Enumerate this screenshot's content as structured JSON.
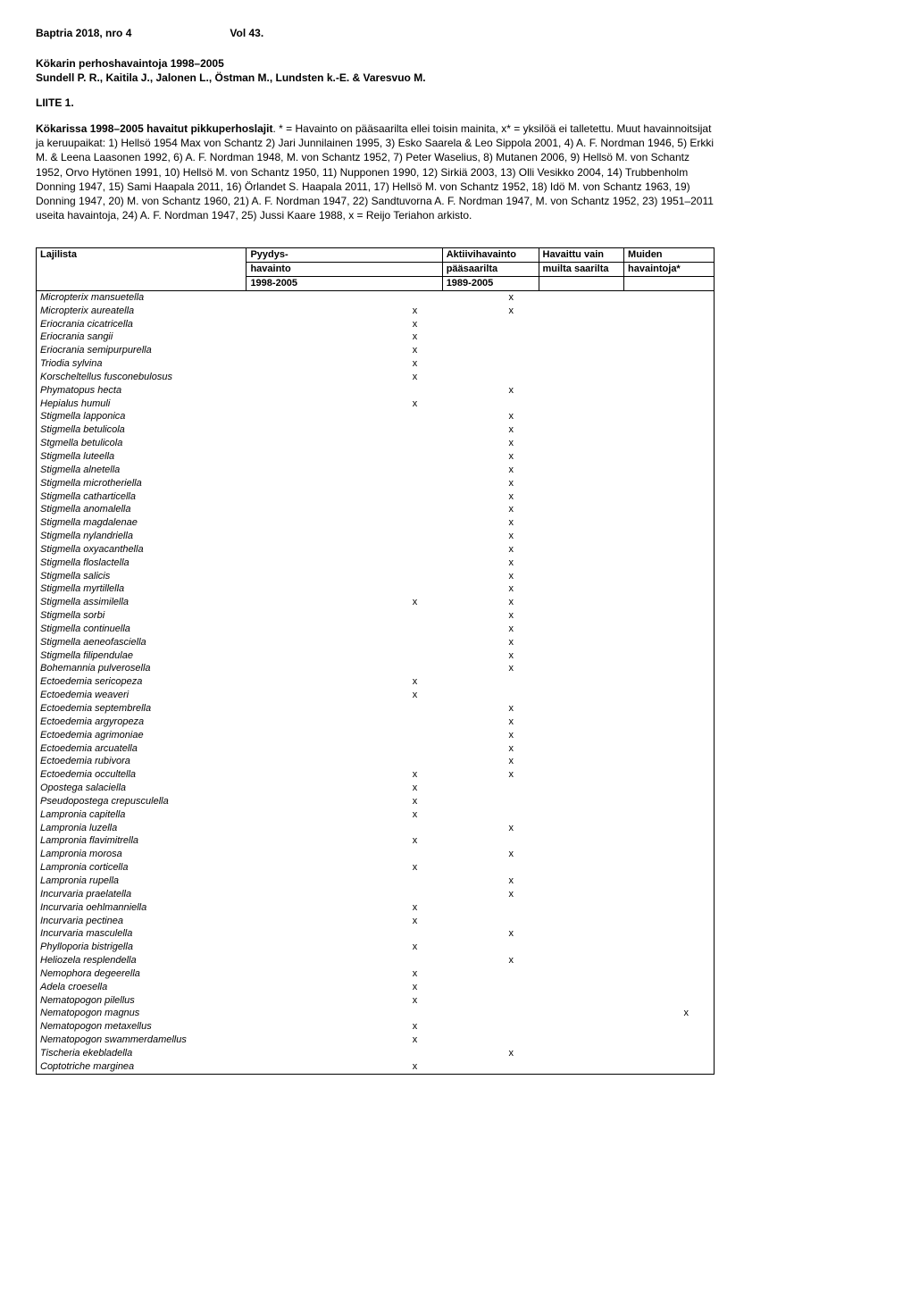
{
  "header": {
    "journal": "Baptria 2018, nro 4",
    "vol": "Vol 43."
  },
  "subtitle": {
    "line1": "Kökarin perhoshavaintoja 1998–2005",
    "line2": "Sundell P. R., Kaitila J., Jalonen L., Östman M., Lundsten k.-E. & Varesvuo M."
  },
  "liite": "LIITE 1.",
  "intro_bold": "Kökarissa 1998–2005 havaitut pikkuperhoslajit",
  "intro_rest": ". * = Havainto on pääsaarilta ellei toisin mainita, x* = yksilöä ei talletettu. Muut havainnoitsijat ja keruupaikat: 1) Hellsö 1954 Max von Schantz 2) Jari Junnilainen 1995, 3) Esko Saarela & Leo Sippola 2001, 4) A. F. Nordman 1946, 5) Erkki M. & Leena Laasonen 1992, 6) A. F. Nordman 1948, M. von Schantz 1952, 7) Peter Waselius, 8) Mutanen 2006, 9) Hellsö M. von Schantz 1952, Orvo Hytönen 1991, 10) Hellsö M. von Schantz 1950, 11) Nupponen 1990, 12) Sirkiä 2003, 13) Olli Vesikko 2004, 14) Trubbenholm Donning 1947, 15) Sami Haapala 2011, 16) Örlandet S. Haapala 2011, 17) Hellsö M. von Schantz 1952, 18) Idö M. von Schantz 1963, 19) Donning 1947, 20) M. von Schantz 1960, 21) A. F. Nordman 1947, 22) Sandtuvorna A. F. Nordman 1947, M. von Schantz 1952, 23) 1951–2011 useita havaintoja, 24) A. F. Nordman 1947, 25) Jussi Kaare 1988, x = Reijo Teriahon arkisto.",
  "table": {
    "headers": {
      "c0": "Lajilista",
      "c1a": "Pyydys-",
      "c1b": "havainto",
      "c1c": "1998-2005",
      "c2a": "Aktiivihavainto",
      "c2b": "pääsaarilta",
      "c2c": "1989-2005",
      "c3a": "Havaittu vain",
      "c3b": "muilta saarilta",
      "c4a": "Muiden",
      "c4b": "havaintoja*"
    },
    "rows": [
      {
        "name": "Micropterix mansuetella",
        "c1": "",
        "c2": "x",
        "c3": "",
        "c4": ""
      },
      {
        "name": "Micropterix aureatella",
        "c1": "x",
        "c2": "x",
        "c3": "",
        "c4": ""
      },
      {
        "name": "Eriocrania cicatricella",
        "c1": "x",
        "c2": "",
        "c3": "",
        "c4": ""
      },
      {
        "name": "Eriocrania sangii",
        "c1": "x",
        "c2": "",
        "c3": "",
        "c4": ""
      },
      {
        "name": "Eriocrania semipurpurella",
        "c1": "x",
        "c2": "",
        "c3": "",
        "c4": ""
      },
      {
        "name": "Triodia sylvina",
        "c1": "x",
        "c2": "",
        "c3": "",
        "c4": ""
      },
      {
        "name": "Korscheltellus fusconebulosus",
        "c1": "x",
        "c2": "",
        "c3": "",
        "c4": ""
      },
      {
        "name": "Phymatopus hecta",
        "c1": "",
        "c2": "x",
        "c3": "",
        "c4": ""
      },
      {
        "name": "Hepialus humuli",
        "c1": "x",
        "c2": "",
        "c3": "",
        "c4": ""
      },
      {
        "name": "Stigmella lapponica",
        "c1": "",
        "c2": "x",
        "c3": "",
        "c4": ""
      },
      {
        "name": "Stigmella betulicola",
        "c1": "",
        "c2": "x",
        "c3": "",
        "c4": ""
      },
      {
        "name": "Stgmella betulicola",
        "c1": "",
        "c2": "x",
        "c3": "",
        "c4": ""
      },
      {
        "name": "Stigmella luteella",
        "c1": "",
        "c2": "x",
        "c3": "",
        "c4": ""
      },
      {
        "name": "Stigmella alnetella",
        "c1": "",
        "c2": "x",
        "c3": "",
        "c4": ""
      },
      {
        "name": "Stigmella microtheriella",
        "c1": "",
        "c2": "x",
        "c3": "",
        "c4": ""
      },
      {
        "name": "Stigmella catharticella",
        "c1": "",
        "c2": "x",
        "c3": "",
        "c4": ""
      },
      {
        "name": "Stigmella anomalella",
        "c1": "",
        "c2": "x",
        "c3": "",
        "c4": ""
      },
      {
        "name": "Stigmella magdalenae",
        "c1": "",
        "c2": "x",
        "c3": "",
        "c4": ""
      },
      {
        "name": "Stigmella nylandriella",
        "c1": "",
        "c2": "x",
        "c3": "",
        "c4": ""
      },
      {
        "name": "Stigmella oxyacanthella",
        "c1": "",
        "c2": "x",
        "c3": "",
        "c4": ""
      },
      {
        "name": "Stigmella floslactella",
        "c1": "",
        "c2": "x",
        "c3": "",
        "c4": ""
      },
      {
        "name": "Stigmella salicis",
        "c1": "",
        "c2": "x",
        "c3": "",
        "c4": ""
      },
      {
        "name": "Stigmella myrtillella",
        "c1": "",
        "c2": "x",
        "c3": "",
        "c4": ""
      },
      {
        "name": "Stigmella assimilella",
        "c1": "x",
        "c2": "x",
        "c3": "",
        "c4": ""
      },
      {
        "name": "Stigmella sorbi",
        "c1": "",
        "c2": "x",
        "c3": "",
        "c4": ""
      },
      {
        "name": "Stigmella continuella",
        "c1": "",
        "c2": "x",
        "c3": "",
        "c4": ""
      },
      {
        "name": "Stigmella aeneofasciella",
        "c1": "",
        "c2": "x",
        "c3": "",
        "c4": ""
      },
      {
        "name": "Stigmella filipendulae",
        "c1": "",
        "c2": "x",
        "c3": "",
        "c4": ""
      },
      {
        "name": "Bohemannia pulverosella",
        "c1": "",
        "c2": "x",
        "c3": "",
        "c4": ""
      },
      {
        "name": "Ectoedemia sericopeza",
        "c1": "x",
        "c2": "",
        "c3": "",
        "c4": ""
      },
      {
        "name": "Ectoedemia weaveri",
        "c1": "x",
        "c2": "",
        "c3": "",
        "c4": ""
      },
      {
        "name": "Ectoedemia septembrella",
        "c1": "",
        "c2": "x",
        "c3": "",
        "c4": ""
      },
      {
        "name": "Ectoedemia argyropeza",
        "c1": "",
        "c2": "x",
        "c3": "",
        "c4": ""
      },
      {
        "name": "Ectoedemia agrimoniae",
        "c1": "",
        "c2": "x",
        "c3": "",
        "c4": ""
      },
      {
        "name": "Ectoedemia arcuatella",
        "c1": "",
        "c2": "x",
        "c3": "",
        "c4": ""
      },
      {
        "name": "Ectoedemia rubivora",
        "c1": "",
        "c2": "x",
        "c3": "",
        "c4": ""
      },
      {
        "name": "Ectoedemia occultella",
        "c1": "x",
        "c2": "x",
        "c3": "",
        "c4": ""
      },
      {
        "name": "Opostega salaciella",
        "c1": "x",
        "c2": "",
        "c3": "",
        "c4": ""
      },
      {
        "name": "Pseudopostega crepusculella",
        "c1": "x",
        "c2": "",
        "c3": "",
        "c4": ""
      },
      {
        "name": "Lampronia capitella",
        "c1": "x",
        "c2": "",
        "c3": "",
        "c4": ""
      },
      {
        "name": "Lampronia luzella",
        "c1": "",
        "c2": "x",
        "c3": "",
        "c4": ""
      },
      {
        "name": "Lampronia flavimitrella",
        "c1": "x",
        "c2": "",
        "c3": "",
        "c4": ""
      },
      {
        "name": "Lampronia morosa",
        "c1": "",
        "c2": "x",
        "c3": "",
        "c4": ""
      },
      {
        "name": "Lampronia corticella",
        "c1": "x",
        "c2": "",
        "c3": "",
        "c4": ""
      },
      {
        "name": "Lampronia rupella",
        "c1": "",
        "c2": "x",
        "c3": "",
        "c4": ""
      },
      {
        "name": "Incurvaria praelatella",
        "c1": "",
        "c2": "x",
        "c3": "",
        "c4": ""
      },
      {
        "name": "Incurvaria oehlmanniella",
        "c1": "x",
        "c2": "",
        "c3": "",
        "c4": ""
      },
      {
        "name": "Incurvaria pectinea",
        "c1": "x",
        "c2": "",
        "c3": "",
        "c4": ""
      },
      {
        "name": "Incurvaria masculella",
        "c1": "",
        "c2": "x",
        "c3": "",
        "c4": ""
      },
      {
        "name": "Phylloporia bistrigella",
        "c1": "x",
        "c2": "",
        "c3": "",
        "c4": ""
      },
      {
        "name": "Heliozela resplendella",
        "c1": "",
        "c2": "x",
        "c3": "",
        "c4": ""
      },
      {
        "name": "Nemophora degeerella",
        "c1": "x",
        "c2": "",
        "c3": "",
        "c4": ""
      },
      {
        "name": "Adela croesella",
        "c1": "x",
        "c2": "",
        "c3": "",
        "c4": ""
      },
      {
        "name": "Nematopogon pilellus",
        "c1": "x",
        "c2": "",
        "c3": "",
        "c4": ""
      },
      {
        "name": "Nematopogon magnus",
        "c1": "",
        "c2": "",
        "c3": "",
        "c4": "x"
      },
      {
        "name": "Nematopogon metaxellus",
        "c1": "x",
        "c2": "",
        "c3": "",
        "c4": ""
      },
      {
        "name": "Nematopogon swammerdamellus",
        "c1": "x",
        "c2": "",
        "c3": "",
        "c4": ""
      },
      {
        "name": "Tischeria ekebladella",
        "c1": "",
        "c2": "x",
        "c3": "",
        "c4": ""
      },
      {
        "name": "Coptotriche marginea",
        "c1": "x",
        "c2": "",
        "c3": "",
        "c4": ""
      }
    ]
  }
}
